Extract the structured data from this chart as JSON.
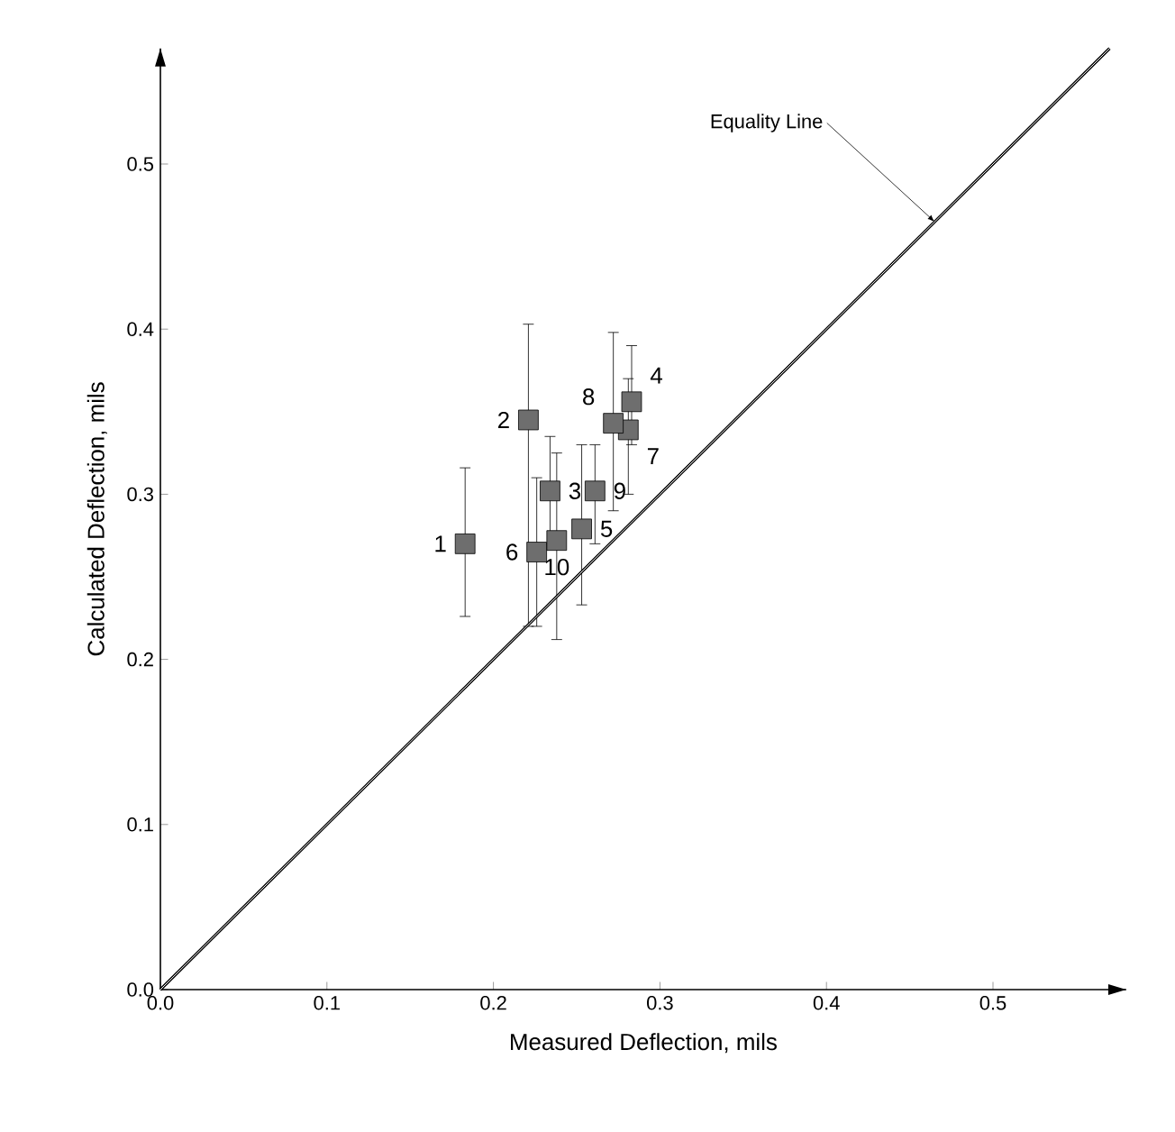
{
  "chart_data": {
    "type": "scatter",
    "xlabel": "Measured Deflection, mils",
    "ylabel": "Calculated Deflection, mils",
    "xlim": [
      0,
      0.58
    ],
    "ylim": [
      0,
      0.57
    ],
    "xticks": [
      {
        "value": 0,
        "label": "0.0"
      },
      0.1,
      0.2,
      0.3,
      0.4,
      0.5
    ],
    "yticks": [
      {
        "value": 0,
        "label": "0.0"
      },
      0.1,
      0.2,
      0.3,
      0.4,
      0.5
    ],
    "series": [
      {
        "color": "#6e6e6e",
        "marker": "square",
        "x": [
          0.183,
          0.221,
          0.234,
          0.283,
          0.253,
          0.226,
          0.281,
          0.272,
          0.261,
          0.238
        ],
        "values": [
          0.27,
          0.345,
          0.302,
          0.356,
          0.279,
          0.265,
          0.339,
          0.343,
          0.302,
          0.272
        ],
        "errors": [
          [
            0.226,
            0.316
          ],
          [
            0.22,
            0.403
          ],
          [
            0.27,
            0.335
          ],
          [
            0.33,
            0.39
          ],
          [
            0.233,
            0.33
          ],
          [
            0.22,
            0.31
          ],
          [
            0.3,
            0.37
          ],
          [
            0.29,
            0.398
          ],
          [
            0.27,
            0.33
          ],
          [
            0.212,
            0.325
          ]
        ]
      },
      {
        "type": "line",
        "color": "#000000",
        "marker": "none",
        "line_style": "solid",
        "x": [
          0,
          0.57
        ],
        "values": [
          0,
          0.57
        ]
      }
    ],
    "annotations": [
      {
        "text": "1",
        "x": 0.183,
        "y": 0.27
      },
      {
        "text": "2",
        "x": 0.221,
        "y": 0.345
      },
      {
        "text": "3",
        "x": 0.234,
        "y": 0.302
      },
      {
        "text": "4",
        "x": 0.283,
        "y": 0.356
      },
      {
        "text": "5",
        "x": 0.253,
        "y": 0.279
      },
      {
        "text": "6",
        "x": 0.226,
        "y": 0.265
      },
      {
        "text": "7",
        "x": 0.281,
        "y": 0.339
      },
      {
        "text": "8",
        "x": 0.272,
        "y": 0.343
      },
      {
        "text": "9",
        "x": 0.261,
        "y": 0.302
      },
      {
        "text": "10",
        "x": 0.238,
        "y": 0.272
      },
      {
        "text": "Equality Line",
        "x": 0.465,
        "y": 0.465
      }
    ]
  }
}
